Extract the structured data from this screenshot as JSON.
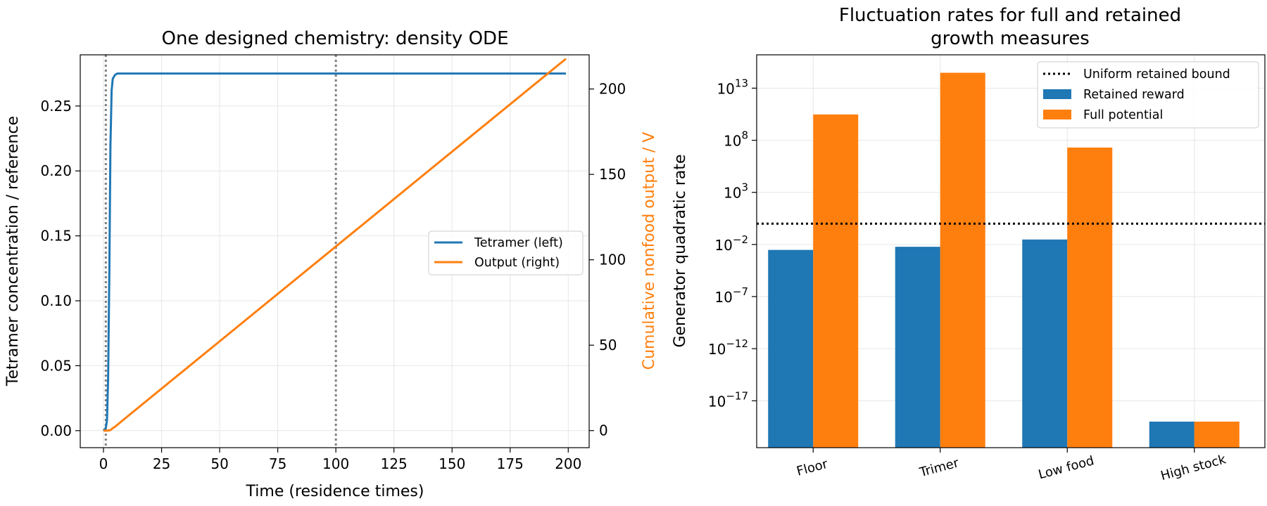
{
  "chart_data": [
    {
      "type": "line",
      "title": "One designed chemistry: density ODE",
      "xlabel": "Time (residence times)",
      "ylabel": "Tetramer concentration / reference",
      "y2label": "Cumulative nonfood output / V",
      "xlim": [
        -10,
        209
      ],
      "ylim": [
        -0.0131,
        0.2894
      ],
      "y2lim": [
        -10,
        220
      ],
      "xticks": [
        "0",
        "25",
        "50",
        "75",
        "100",
        "125",
        "150",
        "175",
        "200"
      ],
      "yticks": [
        "0.00",
        "0.05",
        "0.10",
        "0.15",
        "0.20",
        "0.25"
      ],
      "y2ticks": [
        "0",
        "50",
        "100",
        "150",
        "200"
      ],
      "grid": true,
      "legend_position": "center-right",
      "vlines": [
        1,
        100
      ],
      "series": [
        {
          "name": "Tetramer (left)",
          "axis": "left",
          "color": "#1f77b4",
          "x": [
            0,
            1,
            1.5,
            2,
            2.5,
            3,
            3.5,
            4,
            5,
            6,
            7,
            10,
            50,
            100,
            150,
            199
          ],
          "y": [
            0,
            0.002,
            0.008,
            0.04,
            0.12,
            0.22,
            0.262,
            0.271,
            0.274,
            0.275,
            0.275,
            0.275,
            0.275,
            0.275,
            0.275,
            0.275
          ]
        },
        {
          "name": "Output (right)",
          "axis": "right",
          "color": "#ff7f0e",
          "x": [
            0,
            1,
            2,
            3,
            4,
            5,
            10,
            50,
            100,
            150,
            199
          ],
          "y": [
            0,
            0,
            0,
            0.3,
            1.4,
            2.3,
            7.9,
            52.3,
            107.8,
            163.3,
            217.7
          ]
        }
      ]
    },
    {
      "type": "bar",
      "title": "Fluctuation rates for full and retained growth measures",
      "title_lines": [
        "Fluctuation rates for full and retained",
        "growth measures"
      ],
      "ylabel": "Generator quadratic rate",
      "yscale": "log",
      "ylim_exp": [
        -21.5,
        16.2
      ],
      "ytick_exps": [
        -17,
        -12,
        -7,
        -2,
        3,
        8,
        13
      ],
      "ytick_base": "10",
      "ytick_labels": [
        "10",
        "10",
        "10",
        "10",
        "10",
        "10",
        "10"
      ],
      "ytick_sups": [
        "−17",
        "−12",
        "−7",
        "−2",
        "3",
        "8",
        "13"
      ],
      "categories": [
        "Floor",
        "Trimer",
        "Low food",
        "High stock"
      ],
      "grid": true,
      "legend_position": "top-right",
      "hline": {
        "name": "Uniform retained bound",
        "value": 1.0
      },
      "series": [
        {
          "name": "Retained reward",
          "color": "#1f77b4",
          "values": [
            0.003,
            0.006,
            0.03,
            1e-19
          ]
        },
        {
          "name": "Full potential",
          "color": "#ff7f0e",
          "values": [
            30000000000.0,
            300000000000000.0,
            20000000.0,
            1e-19
          ]
        }
      ]
    }
  ]
}
